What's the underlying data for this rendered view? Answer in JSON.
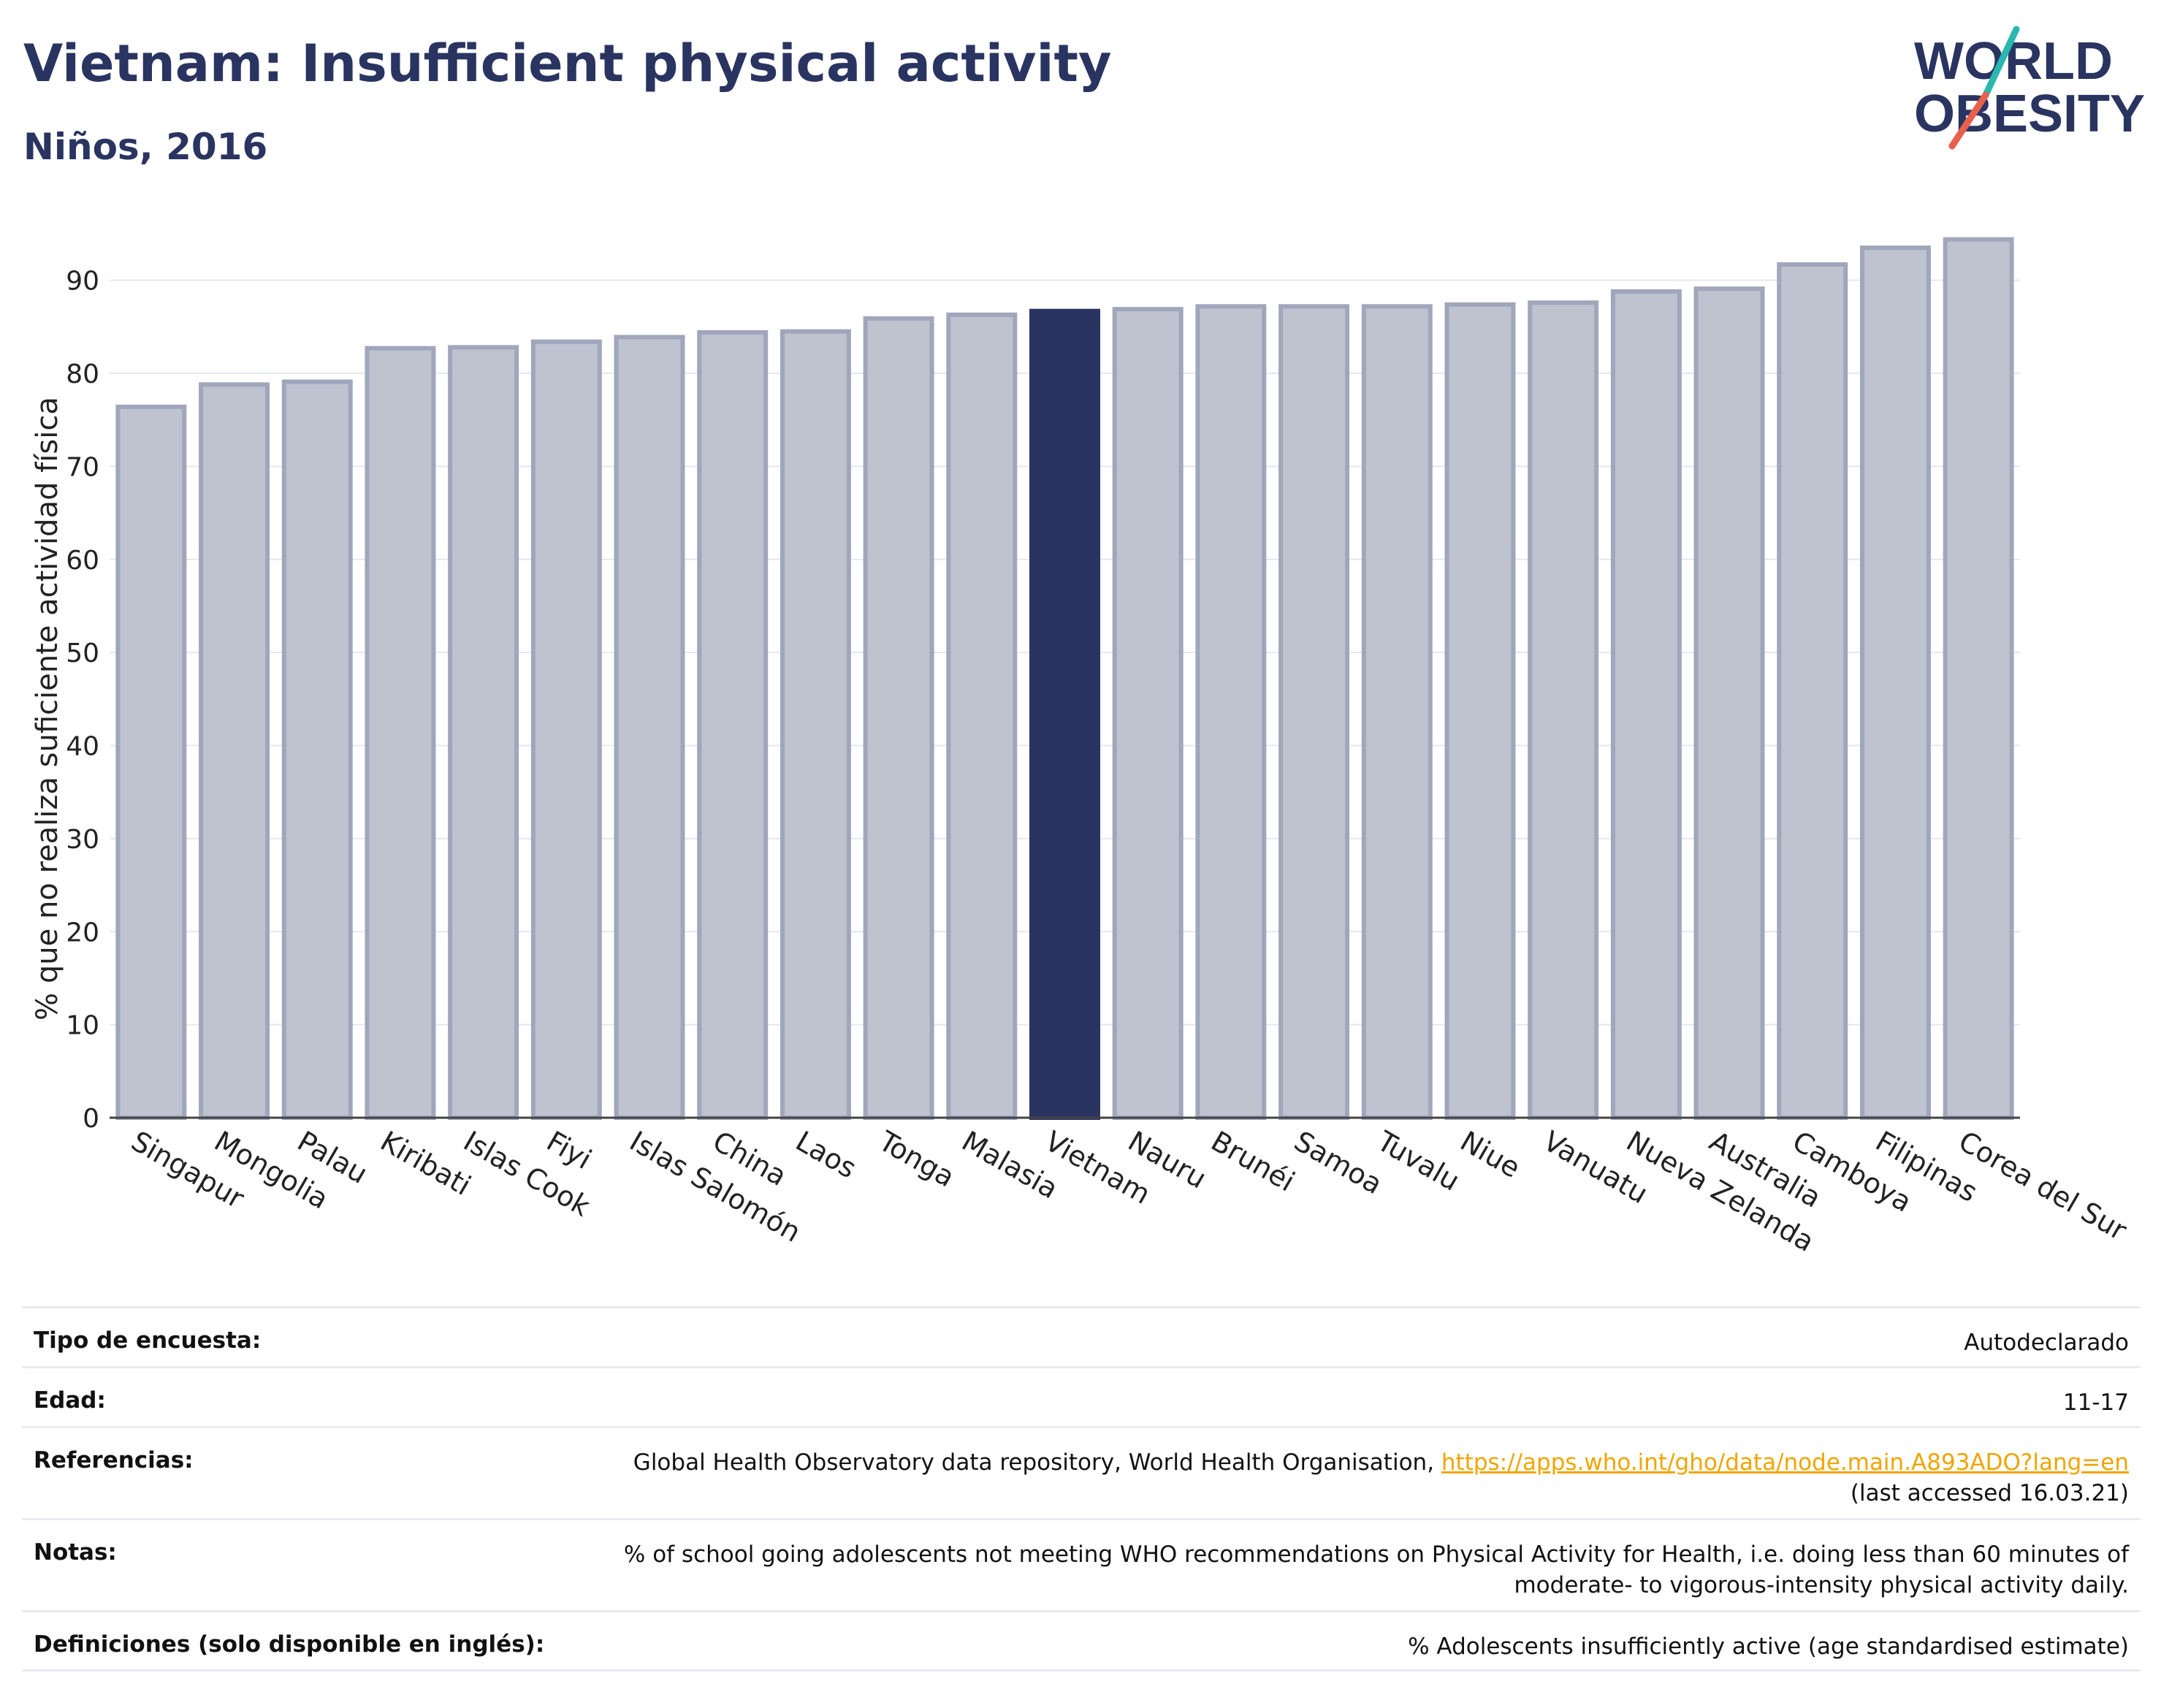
{
  "header": {
    "title": "Vietnam: Insufficient physical activity",
    "subtitle": "Niños, 2016"
  },
  "logo": {
    "line1": "WORLD",
    "line2": "OBESITY",
    "slash_colors": [
      "#2ab7b0",
      "#e8604c"
    ]
  },
  "chart_data": {
    "type": "bar",
    "ylabel": "% que no realiza suficiente actividad física",
    "ylim": [
      0,
      95
    ],
    "yticks": [
      0,
      10,
      20,
      30,
      40,
      50,
      60,
      70,
      80,
      90
    ],
    "grid": true,
    "highlight": "Vietnam",
    "colors": {
      "bar": "#bfc2cf",
      "bar_border": "#a0a6bb",
      "highlight": "#2a3461",
      "grid": "#e6e8ee",
      "axis": "#444444"
    },
    "categories": [
      "Singapur",
      "Mongolia",
      "Palau",
      "Kiribati",
      "Islas Cook",
      "Fiyi",
      "Islas Salomón",
      "China",
      "Laos",
      "Tonga",
      "Malasia",
      "Vietnam",
      "Nauru",
      "Brunéi",
      "Samoa",
      "Tuvalu",
      "Niue",
      "Vanuatu",
      "Nueva Zelanda",
      "Australia",
      "Camboya",
      "Filipinas",
      "Corea del Sur"
    ],
    "values": [
      76.4,
      78.8,
      79.1,
      82.7,
      82.8,
      83.4,
      83.9,
      84.4,
      84.5,
      85.9,
      86.3,
      86.7,
      86.9,
      87.2,
      87.2,
      87.2,
      87.4,
      87.6,
      88.8,
      89.1,
      91.7,
      93.5,
      94.4
    ]
  },
  "info": {
    "survey_type": {
      "label": "Tipo de encuesta:",
      "value": "Autodeclarado"
    },
    "age": {
      "label": "Edad:",
      "value": "11-17"
    },
    "references": {
      "label": "Referencias:",
      "text": "Global Health Observatory data repository, World Health Organisation, ",
      "link": "https://apps.who.int/gho/data/node.main.A893ADO?lang=en",
      "accessed": "(last accessed 16.03.21)"
    },
    "notes": {
      "label": "Notas:",
      "line1": "% of school going adolescents not meeting WHO recommendations on Physical Activity for Health, i.e. doing less than 60 minutes of",
      "line2": "moderate- to vigorous-intensity physical activity daily."
    },
    "definitions": {
      "label": "Definiciones (solo disponible en inglés):",
      "value": "% Adolescents insufficiently active (age standardised estimate)"
    }
  }
}
